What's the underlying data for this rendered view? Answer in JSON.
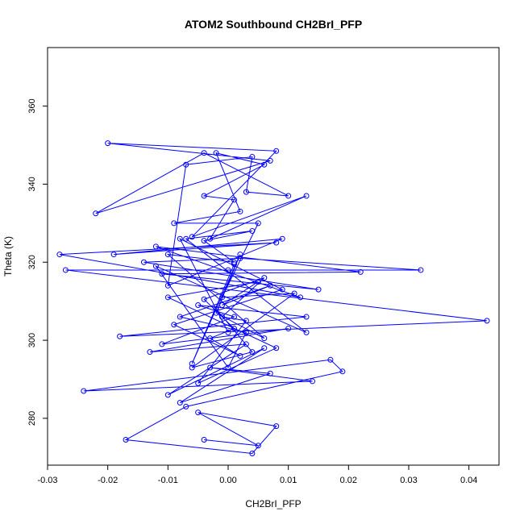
{
  "chart_data": {
    "type": "line",
    "title": "ATOM2 Southbound CH2BrI_PFP",
    "xlabel": "CH2BrI_PFP",
    "ylabel": "Theta (K)",
    "xlim": [
      -0.03,
      0.045
    ],
    "ylim": [
      268,
      375
    ],
    "xticks": [
      -0.03,
      -0.02,
      -0.01,
      0.0,
      0.01,
      0.02,
      0.03,
      0.04
    ],
    "xtick_labels": [
      "-0.03",
      "-0.02",
      "-0.01",
      "0.00",
      "0.01",
      "0.02",
      "0.03",
      "0.04"
    ],
    "yticks": [
      280,
      300,
      320,
      340,
      360
    ],
    "ytick_labels": [
      "280",
      "300",
      "320",
      "340",
      "360"
    ],
    "grid": false,
    "series_color": "#0000ff",
    "marker": "open-circle",
    "series": [
      {
        "x": [
          -0.004,
          0.005,
          -0.005,
          0.008,
          0.004,
          -0.017,
          -0.007,
          0.019,
          0.017,
          -0.024,
          0.014,
          -0.003,
          0.007,
          -0.008,
          0.006,
          -0.01,
          0.003,
          -0.013,
          0.01,
          -0.011,
          0.001,
          -0.005,
          0.013,
          -0.018,
          0.043,
          -0.027,
          0.0,
          0.032,
          0.002,
          -0.014,
          0.015,
          -0.011,
          0.022,
          -0.012,
          0.012,
          -0.028,
          0.008,
          -0.019,
          0.009,
          -0.01,
          -0.007,
          0.004,
          0.003,
          0.01,
          -0.004,
          -0.022,
          0.007,
          -0.02,
          0.008,
          -0.006,
          0.013,
          -0.003,
          0.001,
          -0.004,
          0.006,
          -0.002,
          0.002,
          -0.009,
          0.005,
          -0.001,
          0.011,
          -0.006,
          0.004,
          -0.002,
          0.0,
          -0.008,
          0.009,
          -0.009,
          0.002,
          -0.003,
          0.001,
          -0.004,
          0.006,
          -0.001,
          0.003,
          -0.005,
          0.008,
          -0.01,
          0.005,
          -0.001,
          0.007,
          -0.008,
          0.003,
          0.0,
          -0.012,
          0.013,
          -0.007,
          0.004,
          -0.004,
          0.001,
          -0.01,
          0.006,
          -0.002,
          0.002,
          -0.006,
          0.001
        ],
        "y": [
          274.5,
          273,
          281.5,
          278,
          271,
          274.5,
          283,
          292,
          295,
          287,
          289.5,
          293,
          291.5,
          284,
          298,
          286,
          299,
          297,
          303,
          299,
          306,
          309,
          306,
          301,
          305,
          318,
          318,
          318,
          321,
          320,
          313,
          317,
          317.5,
          324,
          311,
          322,
          325,
          322,
          326,
          314,
          345,
          347,
          338,
          337,
          348,
          332.5,
          346,
          350.5,
          348.5,
          326.5,
          337,
          326,
          336,
          337,
          345,
          348,
          333,
          330,
          330,
          311,
          312,
          293,
          297,
          308,
          302,
          326,
          313,
          304,
          296,
          300.5,
          303,
          310.5,
          316,
          306,
          305,
          289,
          298,
          311,
          315,
          309,
          314,
          306,
          302,
          293,
          319,
          302,
          326,
          328,
          325.5,
          320,
          322,
          300.5,
          307,
          322,
          294,
          319.5
        ]
      }
    ]
  }
}
